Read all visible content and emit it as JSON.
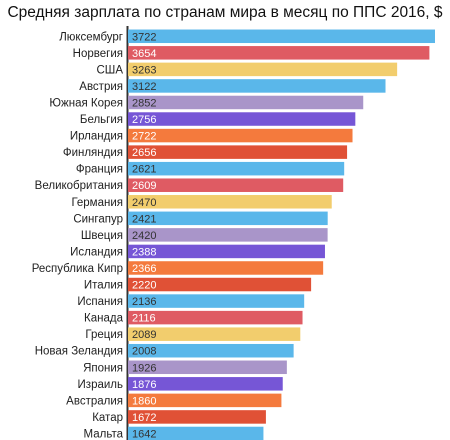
{
  "chart_data": {
    "type": "bar",
    "orientation": "horizontal",
    "title": "Средняя зарплата по странам мира в месяц по ППС 2016, $",
    "xlabel": "",
    "ylabel": "",
    "xlim": [
      0,
      3800
    ],
    "grid": false,
    "legend": "none",
    "categories": [
      "Люксембург",
      "Норвегия",
      "США",
      "Австрия",
      "Южная Корея",
      "Бельгия",
      "Ирландия",
      "Финляндия",
      "Франция",
      "Великобритания",
      "Германия",
      "Сингапур",
      "Швеция",
      "Исландия",
      "Республика Кипр",
      "Италия",
      "Испания",
      "Канада",
      "Греция",
      "Новая Зеландия",
      "Япония",
      "Израиль",
      "Австралия",
      "Катар",
      "Мальта"
    ],
    "values": [
      3722,
      3654,
      3263,
      3122,
      2852,
      2756,
      2722,
      2656,
      2621,
      2609,
      2470,
      2421,
      2420,
      2388,
      2366,
      2220,
      2136,
      2116,
      2089,
      2008,
      1926,
      1876,
      1860,
      1672,
      1642
    ],
    "value_labels": [
      "3722",
      "3654",
      "3263",
      "3122",
      "2852",
      "2756",
      "2722",
      "2656",
      "2621",
      "2609",
      "2470",
      "2421",
      "2420",
      "2388",
      "2366",
      "2220",
      "2136",
      "2116",
      "2089",
      "2008",
      "1926",
      "1876",
      "1860",
      "1672",
      "1642"
    ],
    "bar_colors": [
      "#5ab7ea",
      "#df5b63",
      "#f2cd6d",
      "#5ab7ea",
      "#a995c9",
      "#7656d6",
      "#f47a3d",
      "#e05136",
      "#5ab7ea",
      "#df5b63",
      "#f2cd6d",
      "#5ab7ea",
      "#a995c9",
      "#7656d6",
      "#f47a3d",
      "#e05136",
      "#5ab7ea",
      "#df5b63",
      "#f2cd6d",
      "#5ab7ea",
      "#a995c9",
      "#7656d6",
      "#f47a3d",
      "#e05136",
      "#5ab7ea"
    ],
    "label_text_colors": [
      "#333333",
      "#ffffff",
      "#333333",
      "#333333",
      "#333333",
      "#ffffff",
      "#ffffff",
      "#ffffff",
      "#333333",
      "#ffffff",
      "#333333",
      "#333333",
      "#333333",
      "#ffffff",
      "#ffffff",
      "#ffffff",
      "#333333",
      "#ffffff",
      "#333333",
      "#333333",
      "#333333",
      "#ffffff",
      "#ffffff",
      "#ffffff",
      "#333333"
    ],
    "axis_color": "#333333"
  }
}
